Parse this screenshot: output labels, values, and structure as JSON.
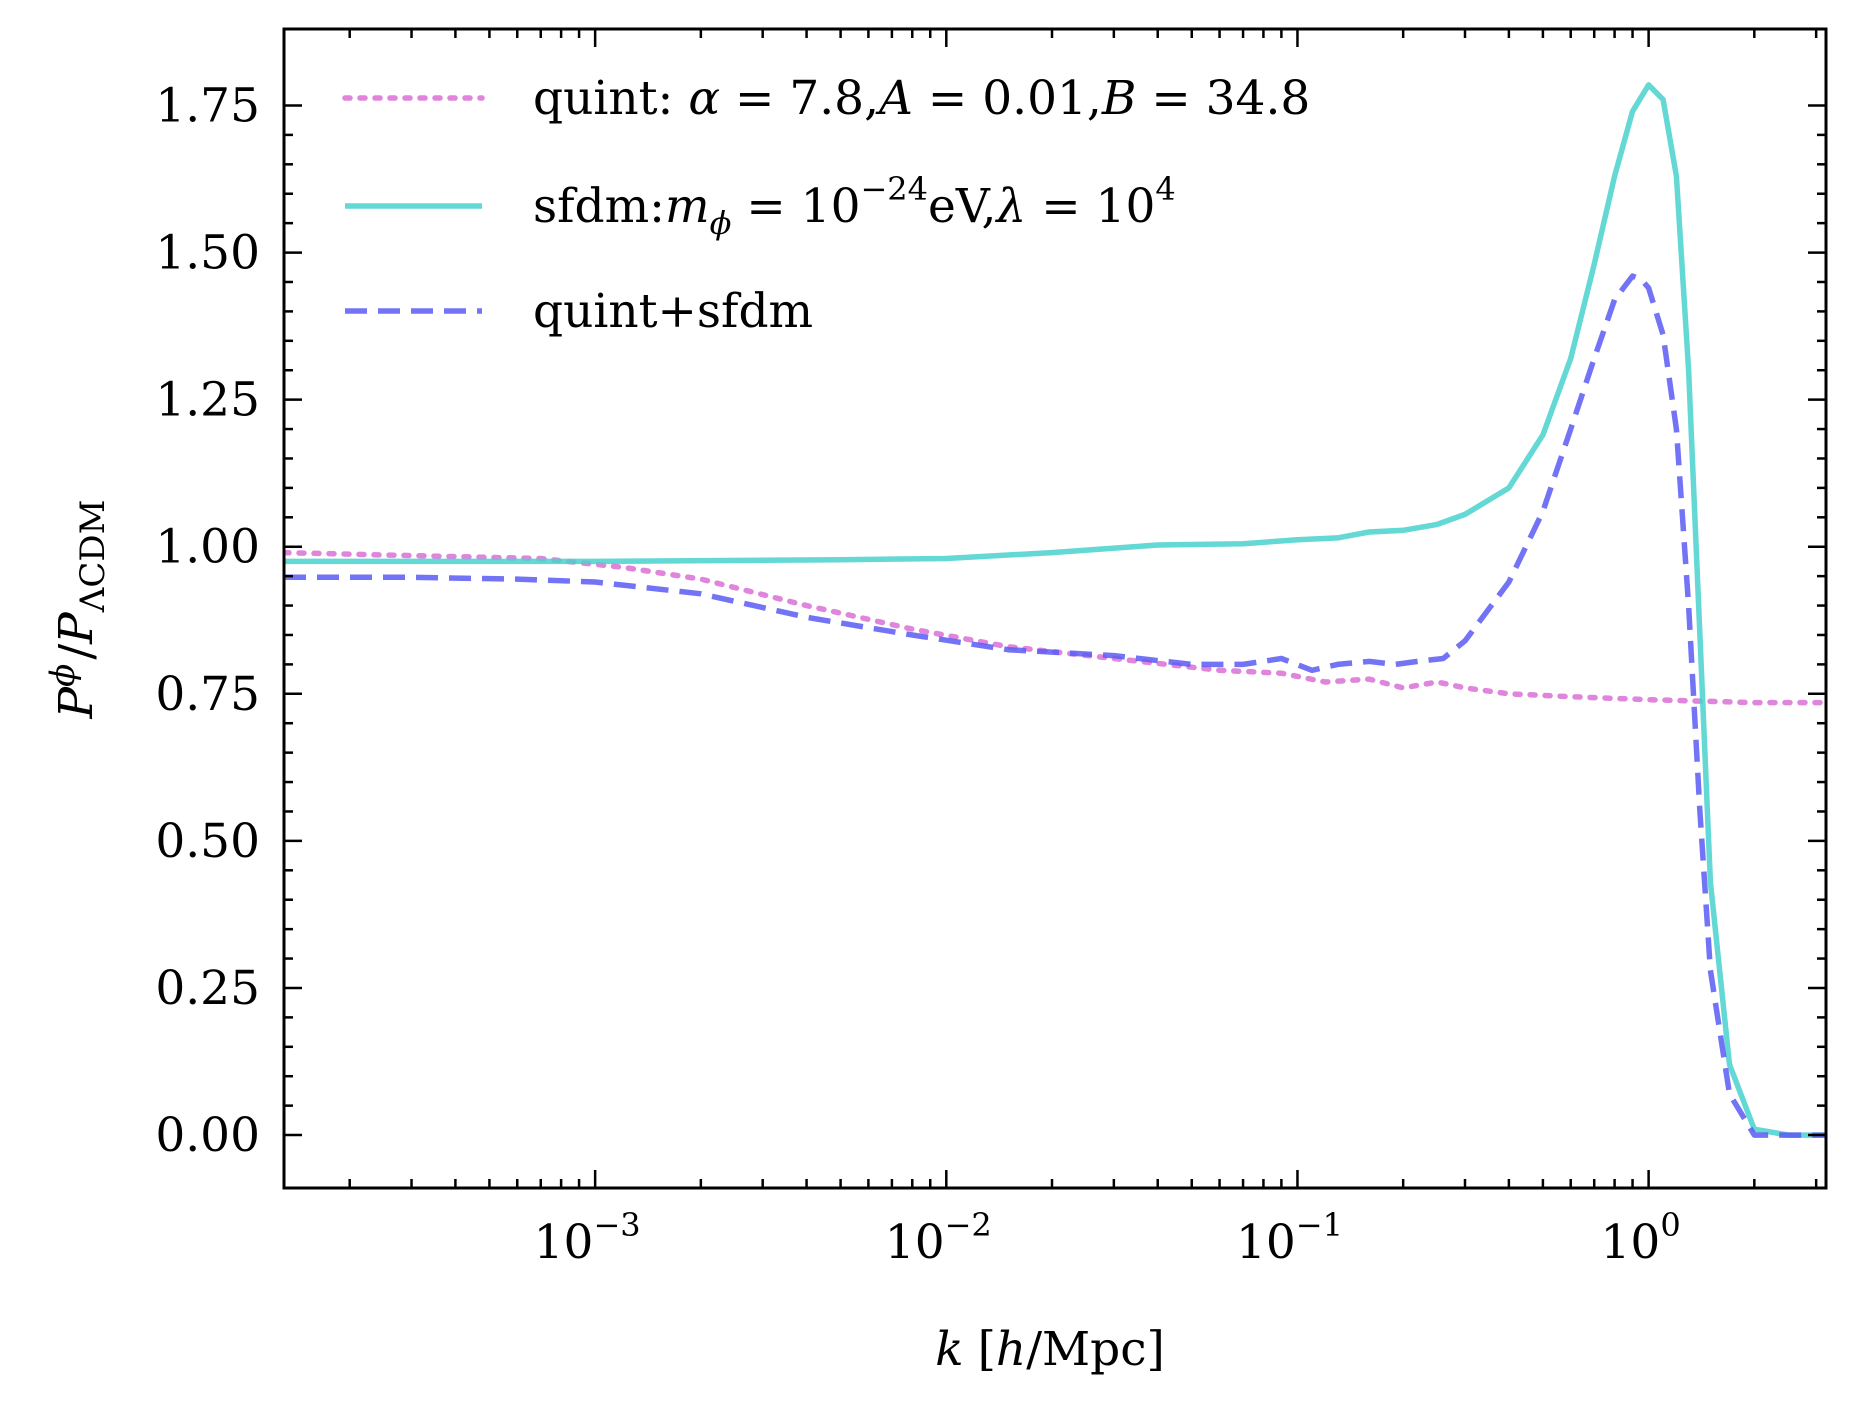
{
  "chart_data": {
    "type": "line",
    "xscale": "log",
    "xlim": [
      0.00013,
      3.2
    ],
    "ylim": [
      -0.09,
      1.88
    ],
    "xlabel": "k [h/Mpc]",
    "ylabel": "P^φ / P_ΛCDM",
    "x_ticks": [
      {
        "base": "10",
        "exp": "−3",
        "value": 0.001
      },
      {
        "base": "10",
        "exp": "−2",
        "value": 0.01
      },
      {
        "base": "10",
        "exp": "−1",
        "value": 0.1
      },
      {
        "base": "10",
        "exp": "0",
        "value": 1
      }
    ],
    "y_ticks": [
      "0.00",
      "0.25",
      "0.50",
      "0.75",
      "1.00",
      "1.25",
      "1.50",
      "1.75"
    ],
    "legend_position": "top-left",
    "series": [
      {
        "name": "quint: α = 7.8, A = 0.01, B = 34.8",
        "color": "#da70d6",
        "style": "dotted",
        "x": [
          0.00013,
          0.0003,
          0.0007,
          0.0012,
          0.002,
          0.004,
          0.008,
          0.015,
          0.03,
          0.06,
          0.09,
          0.12,
          0.16,
          0.2,
          0.25,
          0.3,
          0.4,
          0.6,
          1.0,
          2.0,
          3.2
        ],
        "y": [
          0.99,
          0.985,
          0.98,
          0.965,
          0.945,
          0.9,
          0.86,
          0.83,
          0.81,
          0.79,
          0.785,
          0.77,
          0.775,
          0.76,
          0.77,
          0.76,
          0.75,
          0.745,
          0.74,
          0.735,
          0.735
        ]
      },
      {
        "name": "sfdm: m_φ = 10^−24 eV, λ = 10^4",
        "color": "#48d1cc",
        "style": "solid",
        "x": [
          0.00013,
          0.001,
          0.005,
          0.01,
          0.02,
          0.04,
          0.07,
          0.1,
          0.13,
          0.16,
          0.2,
          0.25,
          0.3,
          0.4,
          0.5,
          0.6,
          0.7,
          0.8,
          0.9,
          1.0,
          1.1,
          1.2,
          1.3,
          1.4,
          1.5,
          1.7,
          2.0,
          2.5,
          3.2
        ],
        "y": [
          0.975,
          0.975,
          0.978,
          0.98,
          0.99,
          1.003,
          1.005,
          1.012,
          1.015,
          1.025,
          1.028,
          1.038,
          1.055,
          1.1,
          1.19,
          1.32,
          1.48,
          1.63,
          1.74,
          1.785,
          1.76,
          1.63,
          1.3,
          0.85,
          0.43,
          0.12,
          0.01,
          0.0,
          0.0
        ]
      },
      {
        "name": "quint+sfdm",
        "color": "#5a5af5",
        "style": "dashed",
        "x": [
          0.00013,
          0.0003,
          0.0006,
          0.001,
          0.002,
          0.004,
          0.008,
          0.015,
          0.03,
          0.05,
          0.07,
          0.09,
          0.11,
          0.13,
          0.16,
          0.19,
          0.22,
          0.26,
          0.3,
          0.4,
          0.5,
          0.6,
          0.7,
          0.8,
          0.9,
          0.95,
          1.0,
          1.1,
          1.2,
          1.3,
          1.4,
          1.5,
          1.7,
          2.0,
          3.2
        ],
        "y": [
          0.948,
          0.948,
          0.945,
          0.94,
          0.92,
          0.88,
          0.85,
          0.825,
          0.815,
          0.8,
          0.8,
          0.81,
          0.79,
          0.8,
          0.805,
          0.8,
          0.805,
          0.81,
          0.84,
          0.94,
          1.06,
          1.2,
          1.32,
          1.42,
          1.46,
          1.455,
          1.44,
          1.36,
          1.2,
          0.9,
          0.55,
          0.28,
          0.07,
          0.0,
          0.0
        ]
      }
    ]
  }
}
